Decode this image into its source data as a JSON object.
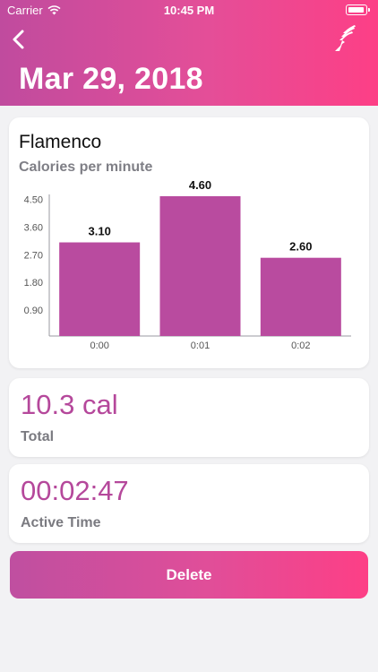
{
  "status_bar": {
    "carrier": "Carrier",
    "time": "10:45 PM"
  },
  "header": {
    "title": "Mar 29, 2018",
    "back_icon": "chevron-left-icon",
    "logo_icon": "winged-foot-logo"
  },
  "workout": {
    "name": "Flamenco",
    "chart_label": "Calories per minute"
  },
  "chart_data": {
    "type": "bar",
    "categories": [
      "0:00",
      "0:01",
      "0:02"
    ],
    "values": [
      3.1,
      4.6,
      2.6
    ],
    "value_labels": [
      "3.10",
      "4.60",
      "2.60"
    ],
    "yticks": [
      "0.90",
      "1.80",
      "2.70",
      "3.60",
      "4.50"
    ],
    "ylim": [
      0,
      4.6
    ],
    "bar_color": "#b94b9f",
    "grid": false
  },
  "stats": {
    "total_value": "10.3 cal",
    "total_label": "Total",
    "active_value": "00:02:47",
    "active_label": "Active Time"
  },
  "actions": {
    "delete_label": "Delete"
  },
  "colors": {
    "accent": "#b5489b",
    "gradient_start": "#c04b9e",
    "gradient_end": "#fd3f86"
  }
}
